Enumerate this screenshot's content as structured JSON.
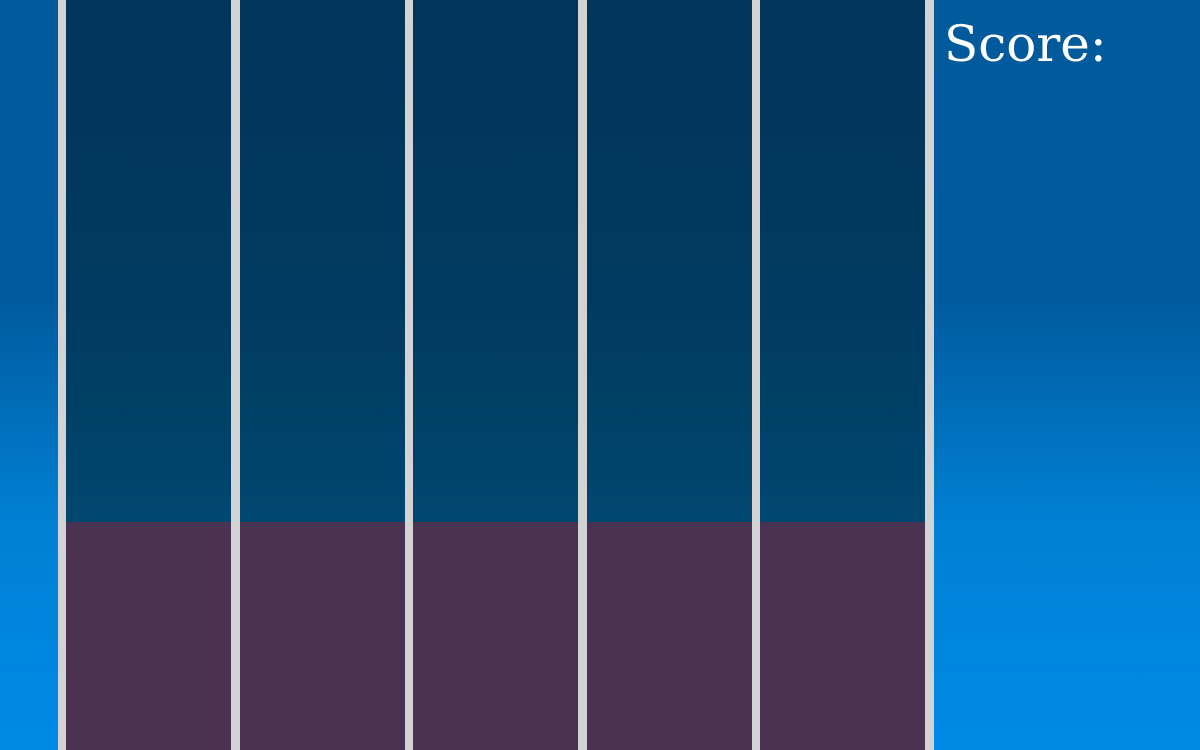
{
  "score": {
    "label": "Score:",
    "value": ""
  },
  "lanes": [
    {
      "id": "lane-1"
    },
    {
      "id": "lane-2"
    },
    {
      "id": "lane-3"
    },
    {
      "id": "lane-4"
    },
    {
      "id": "lane-5"
    }
  ],
  "colors": {
    "background_top": "#005a9c",
    "background_bottom": "#008ae6",
    "lane_top": "#02355a",
    "lane_bottom": "#004b78",
    "hit_zone": "#4a3352",
    "divider": "#d3d3d3",
    "text": "#ffffff"
  }
}
